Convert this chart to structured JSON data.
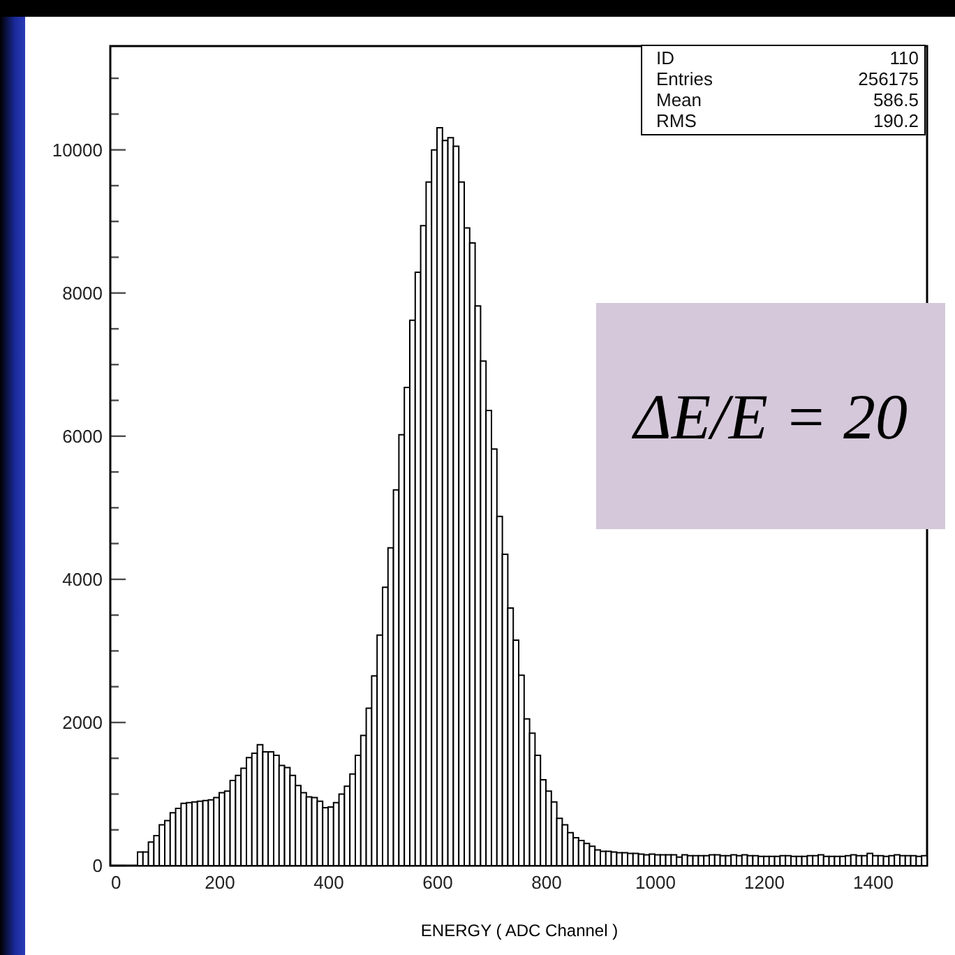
{
  "chart_data": {
    "type": "histogram",
    "xlabel": "ENERGY  ( ADC Channel )",
    "color": "#000000",
    "bins": [
      50,
      60,
      70,
      80,
      90,
      100,
      110,
      120,
      130,
      140,
      150,
      160,
      170,
      180,
      190,
      200,
      210,
      220,
      230,
      240,
      250,
      260,
      270,
      280,
      290,
      300,
      310,
      320,
      330,
      340,
      350,
      360,
      370,
      380,
      390,
      400,
      410,
      420,
      430,
      440,
      450,
      460,
      470,
      480,
      490,
      500,
      510,
      520,
      530,
      540,
      550,
      560,
      570,
      580,
      590,
      600,
      610,
      620,
      630,
      640,
      650,
      660,
      670,
      680,
      690,
      700,
      710,
      720,
      730,
      740,
      750,
      760,
      770,
      780,
      790,
      800,
      810,
      820,
      830,
      840,
      850,
      860,
      870,
      880,
      890,
      900,
      910,
      920,
      930,
      940,
      950,
      960,
      970,
      980,
      990,
      1000,
      1010,
      1020,
      1030,
      1040,
      1050,
      1060,
      1070,
      1080,
      1090,
      1100,
      1110,
      1120,
      1130,
      1140,
      1150,
      1160,
      1170,
      1180,
      1190,
      1200,
      1210,
      1220,
      1230,
      1240,
      1250,
      1260,
      1270,
      1280,
      1290,
      1300,
      1310,
      1320,
      1330,
      1340,
      1350,
      1360,
      1370,
      1380,
      1390,
      1400,
      1410,
      1420,
      1430,
      1440,
      1450,
      1460,
      1470,
      1480,
      1490,
      1500
    ],
    "values": [
      190,
      190,
      330,
      420,
      570,
      630,
      740,
      800,
      870,
      880,
      890,
      900,
      910,
      920,
      950,
      1020,
      1040,
      1190,
      1260,
      1360,
      1510,
      1570,
      1690,
      1590,
      1590,
      1540,
      1400,
      1370,
      1260,
      1120,
      1020,
      960,
      950,
      900,
      810,
      820,
      880,
      1000,
      1110,
      1280,
      1540,
      1820,
      2200,
      2650,
      3220,
      3890,
      4440,
      5250,
      6020,
      6680,
      7620,
      8290,
      8940,
      9550,
      10000,
      10310,
      10130,
      10170,
      10050,
      9550,
      8910,
      8700,
      7820,
      7050,
      6360,
      5820,
      4880,
      4350,
      3600,
      3150,
      2660,
      2050,
      1850,
      1540,
      1200,
      1040,
      890,
      660,
      570,
      460,
      390,
      350,
      310,
      270,
      220,
      200,
      200,
      190,
      180,
      180,
      170,
      170,
      160,
      150,
      160,
      150,
      150,
      150,
      150,
      120,
      150,
      140,
      140,
      140,
      140,
      150,
      150,
      140,
      140,
      150,
      140,
      150,
      140,
      140,
      130,
      130,
      130,
      130,
      140,
      140,
      130,
      130,
      130,
      140,
      140,
      150,
      130,
      130,
      130,
      130,
      140,
      150,
      140,
      140,
      170,
      140,
      140,
      130,
      140,
      150,
      140,
      140,
      140,
      130,
      140
    ],
    "xlim": [
      0,
      1500
    ],
    "xticks": [
      0,
      {
        "value": 50,
        "label": null
      },
      {
        "value": 100,
        "label": null
      },
      {
        "value": 150,
        "label": null
      },
      200,
      {
        "value": 250,
        "label": null
      },
      {
        "value": 300,
        "label": null
      },
      {
        "value": 350,
        "label": null
      },
      400,
      {
        "value": 450,
        "label": null
      },
      {
        "value": 500,
        "label": null
      },
      {
        "value": 550,
        "label": null
      },
      600,
      {
        "value": 650,
        "label": null
      },
      {
        "value": 700,
        "label": null
      },
      {
        "value": 750,
        "label": null
      },
      800,
      {
        "value": 850,
        "label": null
      },
      {
        "value": 900,
        "label": null
      },
      {
        "value": 950,
        "label": null
      },
      1000,
      {
        "value": 1050,
        "label": null
      },
      {
        "value": 1100,
        "label": null
      },
      {
        "value": 1150,
        "label": null
      },
      1200,
      {
        "value": 1250,
        "label": null
      },
      {
        "value": 1300,
        "label": null
      },
      {
        "value": 1350,
        "label": null
      },
      1400,
      {
        "value": 1450,
        "label": null
      }
    ],
    "ylim": [
      0,
      11450
    ],
    "yticks": [
      0,
      {
        "value": 500,
        "label": null
      },
      {
        "value": 1000,
        "label": null
      },
      {
        "value": 1500,
        "label": null
      },
      2000,
      {
        "value": 2500,
        "label": null
      },
      {
        "value": 3000,
        "label": null
      },
      {
        "value": 3500,
        "label": null
      },
      4000,
      {
        "value": 4500,
        "label": null
      },
      {
        "value": 5000,
        "label": null
      },
      {
        "value": 5500,
        "label": null
      },
      6000,
      {
        "value": 6500,
        "label": null
      },
      {
        "value": 7000,
        "label": null
      },
      {
        "value": 7500,
        "label": null
      },
      8000,
      {
        "value": 8500,
        "label": null
      },
      {
        "value": 9000,
        "label": null
      },
      {
        "value": 9500,
        "label": null
      },
      10000,
      {
        "value": 10500,
        "label": null
      },
      {
        "value": 11000,
        "label": null
      }
    ],
    "annotations": [
      "ID 110",
      "Entries 256175",
      "Mean 586.5",
      "RMS 190.2",
      "ΔE/E = 20"
    ]
  }
}
